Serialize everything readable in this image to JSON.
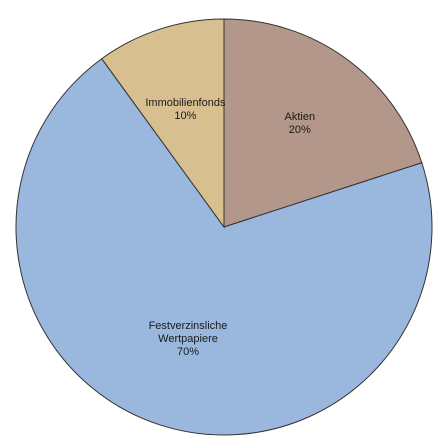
{
  "chart_data": {
    "type": "pie",
    "slices": [
      {
        "label_lines": [
          "Aktien"
        ],
        "percent_label": "20%",
        "value": 20,
        "color": "#b3978a"
      },
      {
        "label_lines": [
          "Festverzinsliche",
          "Wertpapiere"
        ],
        "percent_label": "70%",
        "value": 70,
        "color": "#9ab8dd"
      },
      {
        "label_lines": [
          "Immobilienfonds"
        ],
        "percent_label": "10%",
        "value": 10,
        "color": "#d8bf8f"
      }
    ],
    "start_angle_deg": 0,
    "direction": "clockwise",
    "edge_color": "#333333"
  }
}
